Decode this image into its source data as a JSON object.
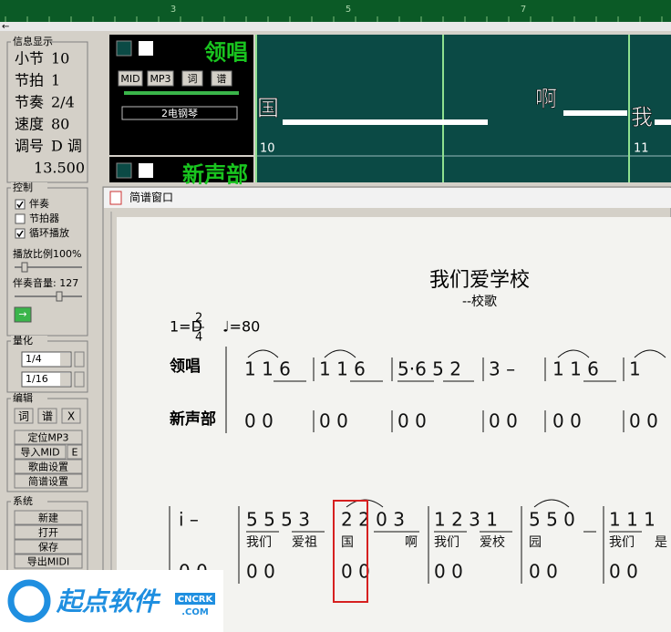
{
  "ruler": {
    "marks": [
      "3",
      "5",
      "7"
    ],
    "arrow": "←"
  },
  "left_panel": {
    "info": {
      "title": "信息显示",
      "rows": [
        {
          "label": "小节",
          "value": "10"
        },
        {
          "label": "节拍",
          "value": "1"
        },
        {
          "label": "节奏",
          "value": "2/4"
        },
        {
          "label": "速度",
          "value": "80"
        },
        {
          "label": "调号",
          "value": "D 调"
        }
      ],
      "time": "13.500"
    },
    "control": {
      "title": "控制",
      "checkboxes": [
        {
          "label": "伴奏",
          "checked": true
        },
        {
          "label": "节拍器",
          "checked": false
        },
        {
          "label": "循环播放",
          "checked": true
        }
      ],
      "ratio_label": "播放比例100%",
      "volume_label": "伴奏音量: 127",
      "go_button": "→"
    },
    "quantize": {
      "title": "量化",
      "options": [
        "1/4",
        "1/16"
      ]
    },
    "edit": {
      "title": "编辑",
      "small_buttons": [
        "词",
        "谱",
        "X"
      ],
      "buttons": [
        "定位MP3",
        "导入MID",
        "歌曲设置",
        "简谱设置"
      ],
      "e_button": "E"
    },
    "system": {
      "title": "系统",
      "buttons": [
        "新建",
        "打开",
        "保存",
        "导出MIDI"
      ]
    }
  },
  "tracks": [
    {
      "name": "领唱",
      "buttons": [
        "MID",
        "MP3",
        "词",
        "谱"
      ],
      "instrument": "2电钢琴"
    },
    {
      "name": "新声部"
    }
  ],
  "timeline": {
    "lyrics": [
      "国",
      "啊",
      "我"
    ],
    "measure_numbers": [
      "10",
      "11"
    ]
  },
  "score_window": {
    "title": "简谱窗口",
    "song_title": "我们爱学校",
    "subtitle": "--校歌",
    "key": "1=D",
    "time_top": "2",
    "time_bottom": "4",
    "tempo": "♩=80",
    "parts": [
      "领唱",
      "新声部"
    ],
    "row1": {
      "lead": [
        "1  1 6",
        "1  1 6",
        "5·6 5 2",
        "3  –",
        "1  1 6",
        "1"
      ],
      "second": [
        "0  0",
        "0  0",
        "0    0",
        "0  0",
        "0  0",
        "0  0"
      ]
    },
    "row2": {
      "lead": [
        "i  –",
        "5 5  5 3",
        "2  2 0 3",
        "1 2  3 1",
        "5   5 0",
        "1 1  1"
      ],
      "lyrics": [
        "我们",
        "爱祖",
        "国",
        "啊",
        "我们",
        "爱校",
        "园",
        "我们",
        "是"
      ],
      "second": [
        "0  0",
        "0  0",
        "0  0",
        "0  0",
        "0  0",
        "0  0"
      ]
    }
  },
  "watermark": {
    "brand": "起点软件",
    "site_top": "CNCRK",
    "site_bottom": ".COM"
  }
}
